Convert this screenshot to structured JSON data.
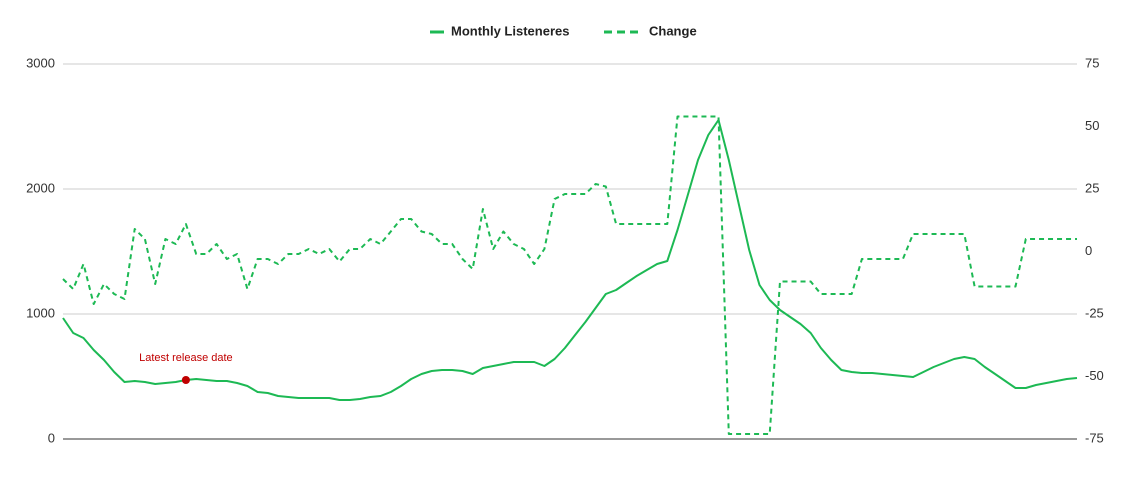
{
  "chart_data": {
    "type": "line",
    "annotation": "Latest release date",
    "categories": [
      null,
      null,
      null,
      null,
      null,
      null,
      null,
      null,
      null,
      null,
      null,
      null,
      null,
      null,
      null,
      null,
      null,
      null,
      null,
      null,
      null,
      null,
      null,
      null,
      null,
      null,
      null,
      null,
      null,
      null,
      null,
      null,
      null,
      null,
      null,
      null,
      null,
      null,
      null,
      null,
      null,
      null,
      null,
      null,
      null,
      null,
      null,
      null,
      null,
      null,
      null,
      null,
      null,
      null,
      null,
      null,
      null,
      null,
      null,
      null,
      null,
      null,
      null,
      null,
      null,
      null,
      null,
      null,
      null,
      null,
      null,
      null,
      null,
      null,
      null,
      null,
      null,
      null,
      null,
      null,
      null,
      null,
      null,
      null,
      null,
      null,
      null,
      null,
      null,
      null,
      null,
      null,
      null,
      null,
      null,
      null,
      null,
      null,
      null,
      null
    ],
    "series": [
      {
        "name": "Monthly Listeneres",
        "color": "#1db954",
        "dash": false,
        "values": [
          968,
          848,
          808,
          712,
          632,
          536,
          456,
          464,
          456,
          440,
          448,
          456,
          472,
          480,
          472,
          464,
          464,
          448,
          424,
          376,
          368,
          344,
          336,
          328,
          328,
          328,
          328,
          312,
          312,
          320,
          336,
          344,
          376,
          424,
          480,
          520,
          544,
          552,
          552,
          544,
          520,
          568,
          584,
          600,
          616,
          616,
          616,
          584,
          640,
          728,
          832,
          936,
          1048,
          1160,
          1192,
          1248,
          1304,
          1352,
          1400,
          1424,
          1672,
          1952,
          2232,
          2432,
          2552,
          2232,
          1872,
          1512,
          1232,
          1112,
          1032,
          976,
          920,
          848,
          728,
          632,
          552,
          536,
          528,
          528,
          520,
          512,
          504,
          496,
          536,
          576,
          608,
          640,
          656,
          640,
          576,
          520,
          464,
          408,
          408,
          432,
          448,
          464,
          480,
          488
        ]
      },
      {
        "name": "Change",
        "color": "#1db954",
        "dash": true,
        "axis": "y2",
        "values": [
          -11,
          -15,
          -5,
          -21,
          -13,
          -17,
          -19,
          9,
          5,
          -13,
          5,
          3,
          11,
          -1,
          -1,
          3,
          -3,
          -1,
          -15,
          -3,
          -3,
          -5,
          -1,
          -1,
          1,
          -1,
          1,
          -4,
          1,
          1,
          5,
          3,
          8,
          13,
          13,
          8,
          7,
          3,
          3,
          -3,
          -7,
          17,
          1,
          8,
          3,
          1,
          -5,
          1,
          21,
          23,
          23,
          23,
          27,
          26,
          11,
          11,
          11,
          11,
          11,
          11,
          54,
          54,
          54,
          54,
          54,
          -73,
          -73,
          -73,
          -73,
          -73,
          -12,
          -12,
          -12,
          -12,
          -17,
          -17,
          -17,
          -17,
          -3,
          -3,
          -3,
          -3,
          -3,
          7,
          7,
          7,
          7,
          7,
          7,
          -14,
          -14,
          -14,
          -14,
          -14,
          5,
          5,
          5,
          5,
          5,
          5
        ]
      }
    ],
    "ylim": [
      0,
      3000
    ],
    "yticks": [
      0,
      1000,
      2000,
      3000
    ],
    "y2lim": [
      -75,
      75
    ],
    "y2ticks": [
      -75,
      -50,
      -25,
      0,
      25,
      50,
      75
    ],
    "grid": true,
    "legend": "top"
  }
}
